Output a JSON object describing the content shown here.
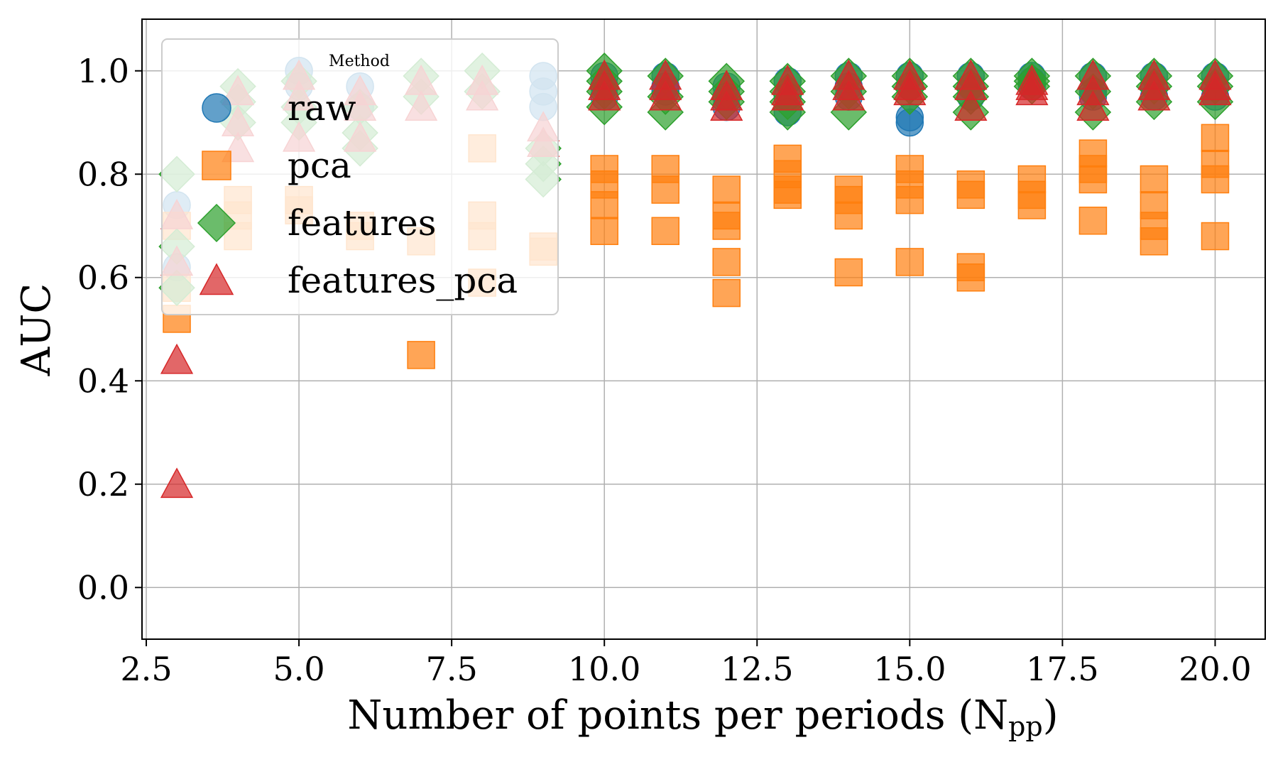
{
  "chart_data": {
    "type": "scatter",
    "title": "",
    "xlabel": "Number of points per periods (N",
    "xlabel_sub": "pp",
    "xlabel_close": ")",
    "ylabel": "AUC",
    "xlim": [
      2.43,
      20.82
    ],
    "ylim": [
      -0.1,
      1.1
    ],
    "xticks": [
      "2.5",
      "5.0",
      "7.5",
      "10.0",
      "12.5",
      "15.0",
      "17.5",
      "20.0"
    ],
    "xtick_values": [
      2.5,
      5.0,
      7.5,
      10.0,
      12.5,
      15.0,
      17.5,
      20.0
    ],
    "yticks": [
      "0.0",
      "0.2",
      "0.4",
      "0.6",
      "0.8",
      "1.0"
    ],
    "ytick_values": [
      0.0,
      0.2,
      0.4,
      0.6,
      0.8,
      1.0
    ],
    "grid": true,
    "legend": {
      "title": "Method",
      "placement": "top-left"
    },
    "series": [
      {
        "name": "raw",
        "marker": "circle",
        "color": "#1f77b4",
        "x": [
          3,
          3,
          5,
          5,
          6,
          6,
          9,
          9,
          9,
          10,
          10,
          10,
          11,
          11,
          11,
          12,
          12,
          12,
          13,
          13,
          13,
          14,
          14,
          14,
          15,
          15,
          15,
          15,
          16,
          16,
          16,
          17,
          17,
          17,
          18,
          18,
          18,
          19,
          19,
          19,
          20,
          20,
          20
        ],
        "y": [
          0.74,
          0.62,
          1.0,
          0.97,
          0.97,
          0.93,
          0.99,
          0.96,
          0.93,
          0.99,
          0.97,
          0.95,
          0.99,
          0.97,
          0.96,
          0.97,
          0.95,
          0.93,
          0.98,
          0.95,
          0.92,
          0.99,
          0.97,
          0.95,
          0.99,
          0.97,
          0.91,
          0.9,
          0.99,
          0.97,
          0.95,
          0.99,
          0.98,
          0.97,
          0.99,
          0.96,
          0.95,
          0.99,
          0.97,
          0.95,
          0.99,
          0.97,
          0.95
        ]
      },
      {
        "name": "pca",
        "marker": "square",
        "color": "#ff7f0e",
        "x": [
          3,
          3,
          3,
          4,
          4,
          4,
          5,
          5,
          6,
          6,
          7,
          7,
          8,
          8,
          8,
          8,
          9,
          9,
          10,
          10,
          10,
          10,
          11,
          11,
          11,
          12,
          12,
          12,
          12,
          12,
          13,
          13,
          13,
          13,
          14,
          14,
          14,
          14,
          15,
          15,
          15,
          15,
          16,
          16,
          16,
          16,
          17,
          17,
          17,
          18,
          18,
          18,
          18,
          19,
          19,
          19,
          19,
          20,
          20,
          20,
          20
        ],
        "y": [
          0.52,
          0.58,
          0.7,
          0.68,
          0.72,
          0.75,
          0.73,
          0.75,
          0.7,
          0.68,
          0.45,
          0.67,
          0.85,
          0.72,
          0.68,
          0.59,
          0.66,
          0.65,
          0.81,
          0.78,
          0.74,
          0.69,
          0.81,
          0.77,
          0.69,
          0.77,
          0.72,
          0.7,
          0.63,
          0.57,
          0.83,
          0.8,
          0.77,
          0.76,
          0.77,
          0.75,
          0.72,
          0.61,
          0.81,
          0.78,
          0.75,
          0.63,
          0.78,
          0.76,
          0.62,
          0.6,
          0.79,
          0.76,
          0.74,
          0.84,
          0.81,
          0.79,
          0.71,
          0.79,
          0.74,
          0.7,
          0.67,
          0.87,
          0.82,
          0.79,
          0.68
        ]
      },
      {
        "name": "features",
        "marker": "diamond",
        "color": "#2ca02c",
        "x": [
          3,
          3,
          3,
          4,
          4,
          4,
          5,
          5,
          5,
          6,
          6,
          6,
          7,
          7,
          8,
          8,
          9,
          9,
          9,
          10,
          10,
          10,
          10,
          11,
          11,
          11,
          12,
          12,
          12,
          13,
          13,
          13,
          13,
          14,
          14,
          14,
          15,
          15,
          15,
          16,
          16,
          16,
          16,
          17,
          17,
          17,
          18,
          18,
          18,
          19,
          19,
          19,
          20,
          20,
          20
        ],
        "y": [
          0.8,
          0.66,
          0.58,
          0.97,
          0.94,
          0.9,
          0.98,
          0.93,
          0.9,
          0.93,
          0.88,
          0.85,
          0.99,
          0.95,
          1.0,
          0.96,
          0.85,
          0.82,
          0.79,
          1.0,
          0.98,
          0.96,
          0.93,
          0.99,
          0.95,
          0.92,
          0.98,
          0.96,
          0.94,
          0.98,
          0.96,
          0.94,
          0.92,
          0.99,
          0.96,
          0.92,
          0.99,
          0.97,
          0.95,
          0.99,
          0.97,
          0.95,
          0.92,
          0.99,
          0.98,
          0.97,
          0.99,
          0.96,
          0.92,
          0.99,
          0.97,
          0.94,
          0.99,
          0.97,
          0.94
        ]
      },
      {
        "name": "features_pca",
        "marker": "triangle",
        "color": "#d62728",
        "x": [
          3,
          3,
          3,
          3,
          4,
          4,
          4,
          5,
          5,
          5,
          6,
          6,
          6,
          7,
          7,
          8,
          8,
          9,
          9,
          10,
          10,
          10,
          11,
          11,
          11,
          12,
          12,
          12,
          13,
          13,
          13,
          14,
          14,
          14,
          15,
          15,
          15,
          16,
          16,
          16,
          17,
          17,
          17,
          18,
          18,
          18,
          19,
          19,
          19,
          20,
          20,
          20
        ],
        "y": [
          0.72,
          0.63,
          0.44,
          0.2,
          0.96,
          0.9,
          0.85,
          0.99,
          0.95,
          0.87,
          0.96,
          0.93,
          0.87,
          0.98,
          0.93,
          0.98,
          0.95,
          0.89,
          0.86,
          0.99,
          0.97,
          0.95,
          0.99,
          0.97,
          0.95,
          0.97,
          0.95,
          0.93,
          0.98,
          0.96,
          0.95,
          0.99,
          0.97,
          0.95,
          0.99,
          0.97,
          0.96,
          0.99,
          0.97,
          0.93,
          0.98,
          0.97,
          0.96,
          0.99,
          0.96,
          0.93,
          0.99,
          0.97,
          0.95,
          0.99,
          0.97,
          0.96
        ]
      }
    ]
  }
}
